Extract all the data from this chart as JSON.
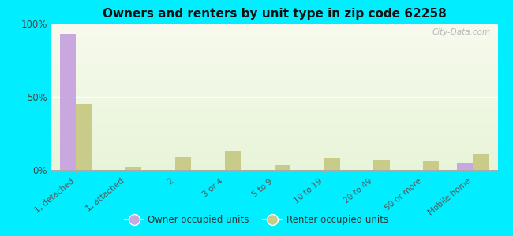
{
  "title": "Owners and renters by unit type in zip code 62258",
  "categories": [
    "1, detached",
    "1, attached",
    "2",
    "3 or 4",
    "5 to 9",
    "10 to 19",
    "20 to 49",
    "50 or more",
    "Mobile home"
  ],
  "owner_values": [
    93,
    0,
    0,
    0,
    0,
    0,
    0,
    0,
    5
  ],
  "renter_values": [
    45,
    2,
    9,
    13,
    3,
    8,
    7,
    6,
    11
  ],
  "owner_color": "#c9a8df",
  "renter_color": "#c8cc88",
  "background_color": "#00eeff",
  "plot_bg": "#eef5e0",
  "ylim": [
    0,
    100
  ],
  "yticks": [
    0,
    50,
    100
  ],
  "ytick_labels": [
    "0%",
    "50%",
    "100%"
  ],
  "bar_width": 0.32,
  "legend_owner": "Owner occupied units",
  "legend_renter": "Renter occupied units",
  "watermark": "City-Data.com"
}
